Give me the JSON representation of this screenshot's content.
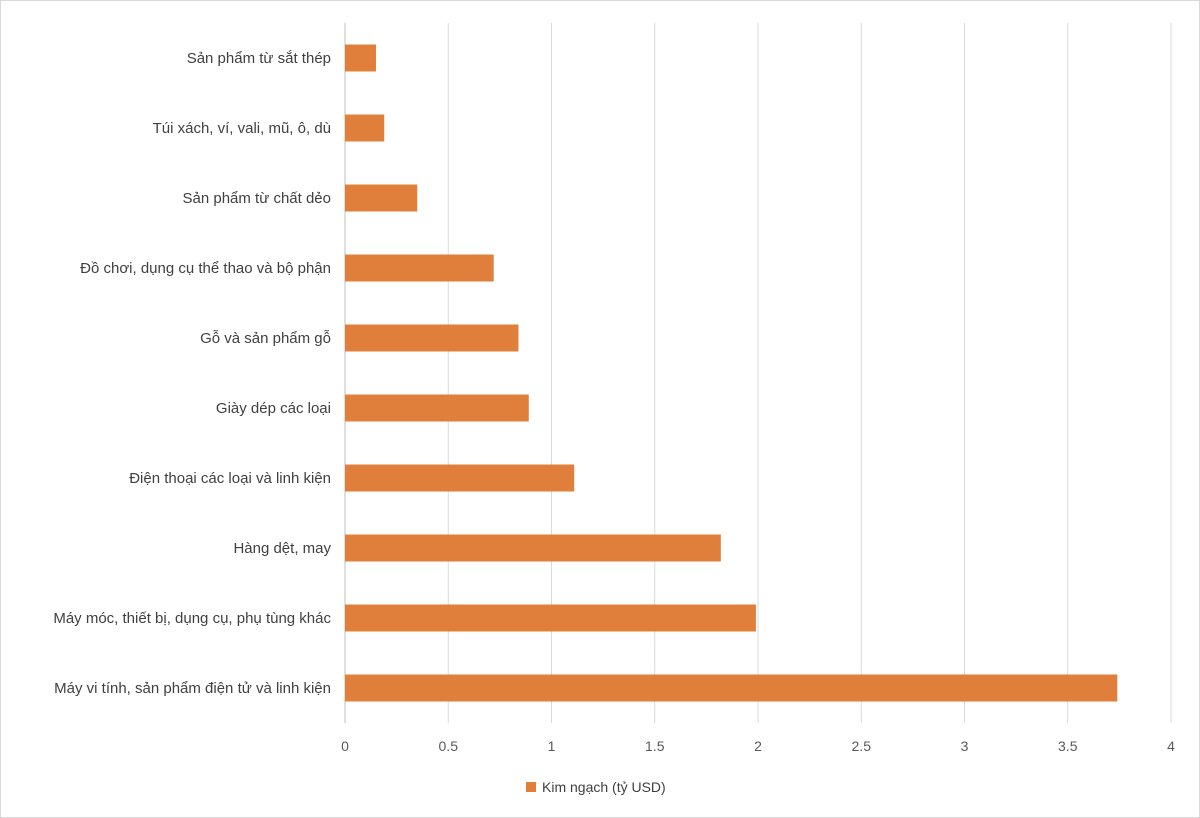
{
  "chart_data": {
    "type": "bar",
    "orientation": "horizontal",
    "categories": [
      "Máy vi tính, sản phẩm điện tử và linh kiện",
      "Máy móc, thiết bị, dụng cụ, phụ tùng khác",
      "Hàng dệt, may",
      "Điện thoại các loại và linh kiện",
      "Giày dép các loại",
      "Gỗ và sản phẩm gỗ",
      "Đồ chơi, dụng cụ thể thao và bộ phận",
      "Sản phẩm từ chất dẻo",
      "Túi xách, ví, vali, mũ, ô, dù",
      "Sản phẩm từ sắt thép"
    ],
    "series": [
      {
        "name": "Kim ngạch (tỷ USD)",
        "color": "#e07f3b",
        "values": [
          3.74,
          1.99,
          1.82,
          1.11,
          0.89,
          0.84,
          0.72,
          0.35,
          0.19,
          0.15
        ]
      }
    ],
    "xlim": [
      0,
      4
    ],
    "xticks": [
      "0",
      "0.5",
      "1",
      "1.5",
      "2",
      "2.5",
      "3",
      "3.5",
      "4"
    ],
    "grid": "vertical",
    "legend": "bottom"
  }
}
